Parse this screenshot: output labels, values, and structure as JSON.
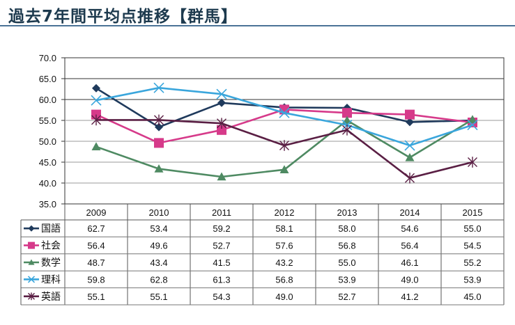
{
  "page": {
    "title": "過去7年間平均点推移【群馬】"
  },
  "chart_data": {
    "type": "line",
    "title": "過去7年間平均点推移【群馬】",
    "xlabel": "",
    "ylabel": "",
    "categories": [
      "2009",
      "2010",
      "2011",
      "2012",
      "2013",
      "2014",
      "2015"
    ],
    "ylim": [
      35.0,
      70.0
    ],
    "yticks": [
      "70.0",
      "65.0",
      "60.0",
      "55.0",
      "50.0",
      "45.0",
      "40.0",
      "35.0"
    ],
    "grid": true,
    "legend": "data-table-left",
    "series": [
      {
        "name": "国語",
        "color": "#1f3a5c",
        "marker": "diamond",
        "values": [
          62.7,
          53.4,
          59.2,
          58.1,
          58.0,
          54.6,
          55.0
        ],
        "labels": [
          "62.7",
          "53.4",
          "59.2",
          "58.1",
          "58.0",
          "54.6",
          "55.0"
        ]
      },
      {
        "name": "社会",
        "color": "#d63a8a",
        "marker": "square",
        "values": [
          56.4,
          49.6,
          52.7,
          57.6,
          56.8,
          56.4,
          54.5
        ],
        "labels": [
          "56.4",
          "49.6",
          "52.7",
          "57.6",
          "56.8",
          "56.4",
          "54.5"
        ]
      },
      {
        "name": "数学",
        "color": "#4e8a62",
        "marker": "triangle",
        "values": [
          48.7,
          43.4,
          41.5,
          43.2,
          55.0,
          46.1,
          55.2
        ],
        "labels": [
          "48.7",
          "43.4",
          "41.5",
          "43.2",
          "55.0",
          "46.1",
          "55.2"
        ]
      },
      {
        "name": "理科",
        "color": "#3aa6dc",
        "marker": "x",
        "values": [
          59.8,
          62.8,
          61.3,
          56.8,
          53.9,
          49.0,
          53.9
        ],
        "labels": [
          "59.8",
          "62.8",
          "61.3",
          "56.8",
          "53.9",
          "49.0",
          "53.9"
        ]
      },
      {
        "name": "英語",
        "color": "#5a1f44",
        "marker": "star",
        "values": [
          55.1,
          55.1,
          54.3,
          49.0,
          52.7,
          41.2,
          45.0
        ],
        "labels": [
          "55.1",
          "55.1",
          "54.3",
          "49.0",
          "52.7",
          "41.2",
          "45.0"
        ]
      }
    ]
  }
}
